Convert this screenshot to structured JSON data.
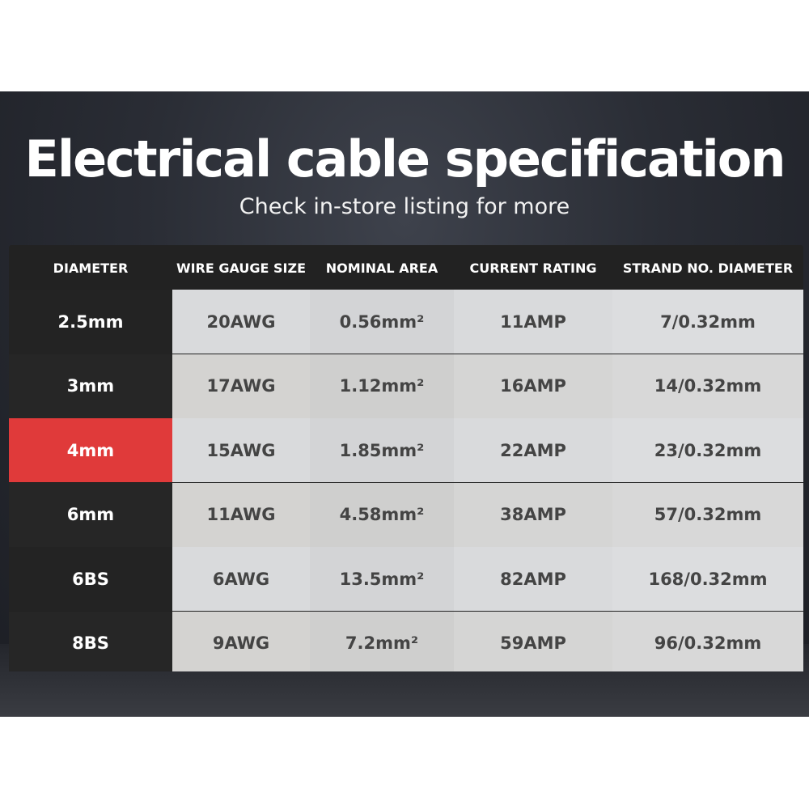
{
  "title": "Electrical cable specification",
  "subtitle": "Check in-store listing for more",
  "colors": {
    "highlight": "#e03a3a",
    "header_bg": "#222222"
  },
  "headers": [
    "DIAMETER",
    "WIRE GAUGE SIZE",
    "NOMINAL AREA",
    "CURRENT RATING",
    "STRAND NO. DIAMETER"
  ],
  "rows": [
    {
      "diameter": "2.5mm",
      "gauge": "20AWG",
      "area": "0.56mm²",
      "current": "11AMP",
      "strand": "7/0.32mm",
      "highlighted": false
    },
    {
      "diameter": "3mm",
      "gauge": "17AWG",
      "area": "1.12mm²",
      "current": "16AMP",
      "strand": "14/0.32mm",
      "highlighted": false
    },
    {
      "diameter": "4mm",
      "gauge": "15AWG",
      "area": "1.85mm²",
      "current": "22AMP",
      "strand": "23/0.32mm",
      "highlighted": true
    },
    {
      "diameter": "6mm",
      "gauge": "11AWG",
      "area": "4.58mm²",
      "current": "38AMP",
      "strand": "57/0.32mm",
      "highlighted": false
    },
    {
      "diameter": "6BS",
      "gauge": "6AWG",
      "area": "13.5mm²",
      "current": "82AMP",
      "strand": "168/0.32mm",
      "highlighted": false
    },
    {
      "diameter": "8BS",
      "gauge": "9AWG",
      "area": "7.2mm²",
      "current": "59AMP",
      "strand": "96/0.32mm",
      "highlighted": false
    }
  ]
}
